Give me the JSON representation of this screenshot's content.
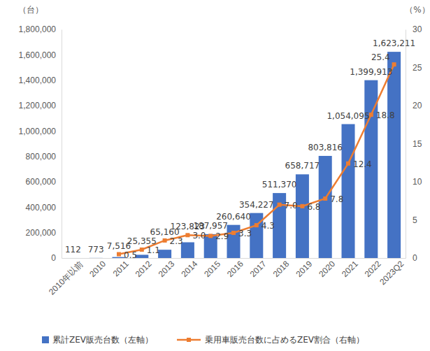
{
  "chart_data": {
    "type": "bar",
    "y_label": "（台）",
    "y2_label": "（%）",
    "categories": [
      "2010年以前",
      "2010",
      "2011",
      "2012",
      "2013",
      "2014",
      "2015",
      "2016",
      "2017",
      "2018",
      "2019",
      "2020",
      "2021",
      "2022",
      "2023Q2"
    ],
    "series": [
      {
        "name": "累計ZEV販売台数（左軸）",
        "type": "bar",
        "color": "#4472c4",
        "values": [
          112,
          773,
          7516,
          25355,
          65160,
          123823,
          187957,
          260640,
          354227,
          511370,
          658717,
          803816,
          1054095,
          1399913,
          1623211
        ],
        "value_labels": [
          "112",
          "773",
          "7,516",
          "25,355",
          "65,160",
          "123,823",
          "187,957",
          "260,640",
          "354,227",
          "511,370",
          "658,717",
          "803,816",
          "1,054,095",
          "1,399,913",
          "1,623,211"
        ]
      },
      {
        "name": "乗用車販売台数に占めるZEV割合（右軸）",
        "type": "line",
        "color": "#ed7d31",
        "marker": "square",
        "axis": "y2",
        "values": [
          null,
          null,
          0.5,
          1.1,
          2.3,
          3.0,
          2.9,
          3.3,
          4.3,
          7.0,
          6.8,
          7.8,
          12.4,
          18.8,
          25.4
        ],
        "value_labels": [
          null,
          null,
          "0.5",
          "1.1",
          "2.3",
          "3.0",
          "2.9",
          "3.3",
          "4.3",
          "7.0",
          "6.8",
          "7.8",
          "12.4",
          "18.8",
          "25.4"
        ]
      }
    ],
    "ylim": [
      0,
      1800000
    ],
    "yticks": [
      0,
      {
        "value": 200000,
        "label": "200,000"
      },
      {
        "value": 400000,
        "label": "400,000"
      },
      {
        "value": 600000,
        "label": "600,000"
      },
      {
        "value": 800000,
        "label": "800,000"
      },
      {
        "value": 1000000,
        "label": "1,000,000"
      },
      {
        "value": 1200000,
        "label": "1,200,000"
      },
      {
        "value": 1400000,
        "label": "1,400,000"
      },
      {
        "value": 1600000,
        "label": "1,600,000"
      },
      {
        "value": 1800000,
        "label": "1,800,000"
      }
    ],
    "y2lim": [
      0,
      30
    ],
    "y2ticks": [
      0,
      5,
      10,
      15,
      20,
      25,
      30
    ],
    "grid": false,
    "legend": "bottom",
    "data_labels": true
  }
}
